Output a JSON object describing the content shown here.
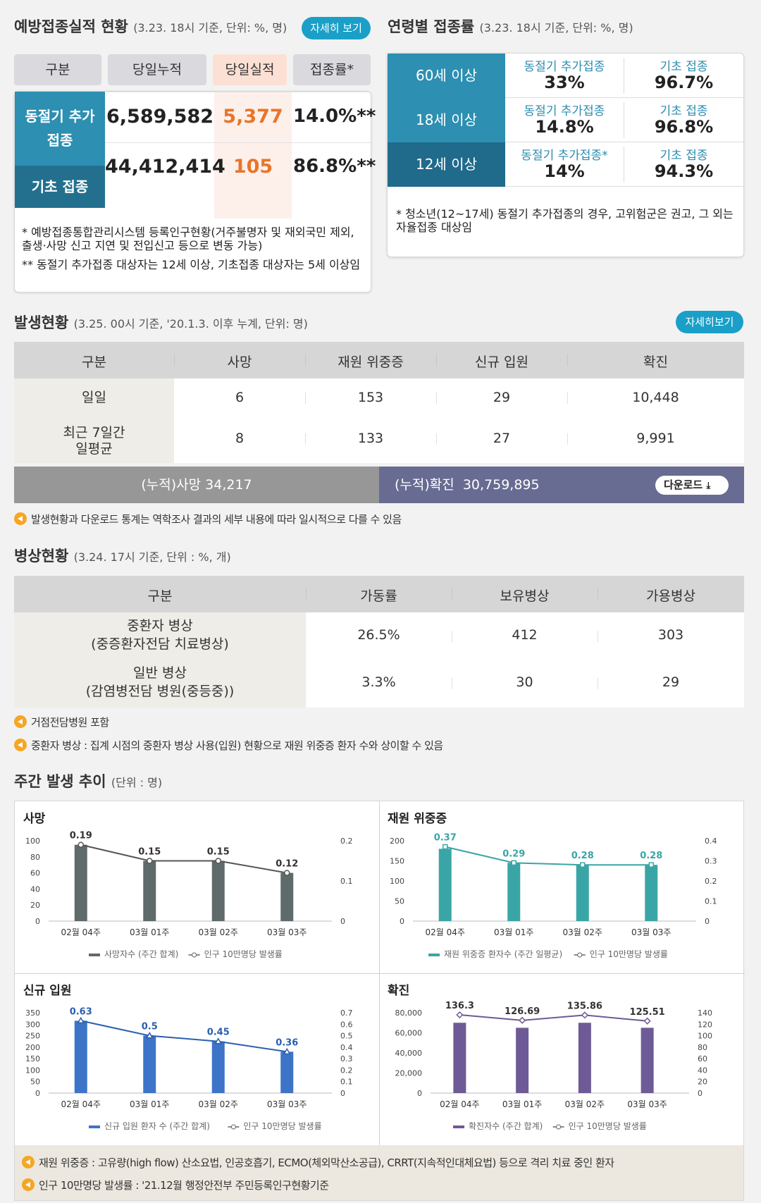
{
  "vacc": {
    "title": "예방접종실적 현황",
    "sub": "(3.23. 18시 기준, 단위: %, 명)",
    "detail": "자세히 보기",
    "headers": [
      "구분",
      "당일누적",
      "당일실적",
      "접종률*"
    ],
    "row1": {
      "label": "동절기 추가\n접종",
      "total": "6,589,582",
      "today": "5,377",
      "rate": "14.0%**"
    },
    "row2": {
      "label": "기초 접종",
      "total": "44,412,414",
      "today": "105",
      "rate": "86.8%**"
    },
    "note1": "* 예방접종통합관리시스템 등록인구현황(거주불명자 및 재외국민 제외, 출생·사망 신고 지연 및 전입신고 등으로 변동 가능)",
    "note2": "** 동절기 추가접종 대상자는 12세 이상, 기초접종 대상자는 5세 이상임"
  },
  "age": {
    "title": "연령별 접종률",
    "sub": "(3.23. 18시 기준, 단위: %, 명)",
    "rows": [
      {
        "label": "60세 이상",
        "k1": "동절기 추가접종",
        "v1": "33%",
        "k2": "기초 접종",
        "v2": "96.7%"
      },
      {
        "label": "18세 이상",
        "k1": "동절기 추가접종",
        "v1": "14.8%",
        "k2": "기초 접종",
        "v2": "96.8%"
      },
      {
        "label": "12세 이상",
        "k1": "동절기 추가접종*",
        "v1": "14%",
        "k2": "기초 접종",
        "v2": "94.3%"
      }
    ],
    "note": "* 청소년(12~17세) 동절기 추가접종의 경우, 고위험군은 권고, 그 외는 자율접종 대상임"
  },
  "occ": {
    "title": "발생현황",
    "sub": "(3.25. 00시 기준, '20.1.3. 이후 누계, 단위: 명)",
    "detail": "자세히보기",
    "headers": [
      "구분",
      "사망",
      "재원 위중증",
      "신규 입원",
      "확진"
    ],
    "rows": [
      {
        "label": "일일",
        "v": [
          "6",
          "153",
          "29",
          "10,448"
        ]
      },
      {
        "label": "최근 7일간\n일평균",
        "v": [
          "8",
          "133",
          "27",
          "9,991"
        ]
      }
    ],
    "cum_death": "(누적)사망  34,217",
    "cum_conf": "(누적)확진  30,759,895",
    "download": "다운로드",
    "note": "발생현황과 다운로드 통계는 역학조사 결과의 세부 내용에 따라 일시적으로 다를 수 있음"
  },
  "bed": {
    "title": "병상현황",
    "sub": "(3.24. 17시 기준, 단위 : %, 개)",
    "headers": [
      "구분",
      "가동률",
      "보유병상",
      "가용병상"
    ],
    "rows": [
      {
        "label": "중환자 병상\n(중증환자전담 치료병상)",
        "v": [
          "26.5%",
          "412",
          "303"
        ]
      },
      {
        "label": "일반 병상\n(감염병전담 병원(중등중))",
        "v": [
          "3.3%",
          "30",
          "29"
        ]
      }
    ],
    "note1": "거점전담병원 포함",
    "note2": "중환자 병상 : 집계 시점의 중환자 병상 사용(입원) 현황으로 재원 위중증 환자 수와 상이할 수 있음"
  },
  "weekly": {
    "title": "주간 발생 추이",
    "sub": "(단위 : 명)",
    "notes": [
      "재원 위중증 : 고유량(high flow) 산소요법, 인공호흡기, ECMO(체외막산소공급), CRRT(지속적인대체요법) 등으로 격리 치료 중인 환자",
      "인구 10만명당 발생률 : '21.12월 행정안전부 주민등록인구현황기준"
    ]
  },
  "chart_data": [
    {
      "type": "bar",
      "title": "사망",
      "categories": [
        "02월 04주",
        "03월 01주",
        "03월 02주",
        "03월 03주"
      ],
      "series": [
        {
          "name": "사망자수 (주간 합계)",
          "values": [
            95,
            75,
            75,
            60
          ]
        },
        {
          "name": "인구 10만명당 발생률",
          "values": [
            0.19,
            0.15,
            0.15,
            0.12
          ]
        }
      ],
      "y_left_ticks": [
        "0",
        "20",
        "40",
        "60",
        "80",
        "100"
      ],
      "y_left_max": 100,
      "y_right_ticks": [
        "0",
        "0.1",
        "0.2"
      ],
      "y_right_max": 0.2,
      "bar_color": "#5f6b6a",
      "line_marker": "circle"
    },
    {
      "type": "bar",
      "title": "재원 위중증",
      "categories": [
        "02월 04주",
        "03월 01주",
        "03월 02주",
        "03월 03주"
      ],
      "series": [
        {
          "name": "재원 위중증 환자수 (주간 일평균)",
          "values": [
            180,
            145,
            140,
            140
          ]
        },
        {
          "name": "인구 10만명당 발생률",
          "values": [
            0.37,
            0.29,
            0.28,
            0.28
          ]
        }
      ],
      "y_left_ticks": [
        "0",
        "50",
        "100",
        "150",
        "200"
      ],
      "y_left_max": 200,
      "y_right_ticks": [
        "0",
        "0.1",
        "0.2",
        "0.3",
        "0.4"
      ],
      "y_right_max": 0.4,
      "bar_color": "#3aa5a6",
      "line_marker": "square"
    },
    {
      "type": "bar",
      "title": "신규 입원",
      "categories": [
        "02월 04주",
        "03월 01주",
        "03월 02주",
        "03월 03주"
      ],
      "series": [
        {
          "name": "신규 입원 환자 수 (주간 합계)",
          "values": [
            315,
            250,
            225,
            180
          ]
        },
        {
          "name": "인구 10만명당 발생률",
          "values": [
            0.63,
            0.5,
            0.45,
            0.36
          ]
        }
      ],
      "y_left_ticks": [
        "0",
        "50",
        "100",
        "150",
        "200",
        "250",
        "300",
        "350"
      ],
      "y_left_max": 350,
      "y_right_ticks": [
        "0",
        "0.1",
        "0.2",
        "0.3",
        "0.4",
        "0.5",
        "0.6",
        "0.7"
      ],
      "y_right_max": 0.7,
      "bar_color": "#3d74c8",
      "line_marker": "triangle"
    },
    {
      "type": "bar",
      "title": "확진",
      "categories": [
        "02월 04주",
        "03월 01주",
        "03월 02주",
        "03월 03주"
      ],
      "series": [
        {
          "name": "확진자수 (주간 합계)",
          "values": [
            70000,
            65000,
            70000,
            65000
          ]
        },
        {
          "name": "인구 10만명당 발생률",
          "values": [
            136.3,
            126.69,
            135.86,
            125.51
          ]
        }
      ],
      "y_left_ticks": [
        "0",
        "20,000",
        "40,000",
        "60,000",
        "80,000"
      ],
      "y_left_max": 80000,
      "y_right_ticks": [
        "0",
        "20",
        "40",
        "60",
        "80",
        "100",
        "120",
        "140"
      ],
      "y_right_max": 140,
      "bar_color": "#6e5a96",
      "line_marker": "diamond"
    }
  ]
}
